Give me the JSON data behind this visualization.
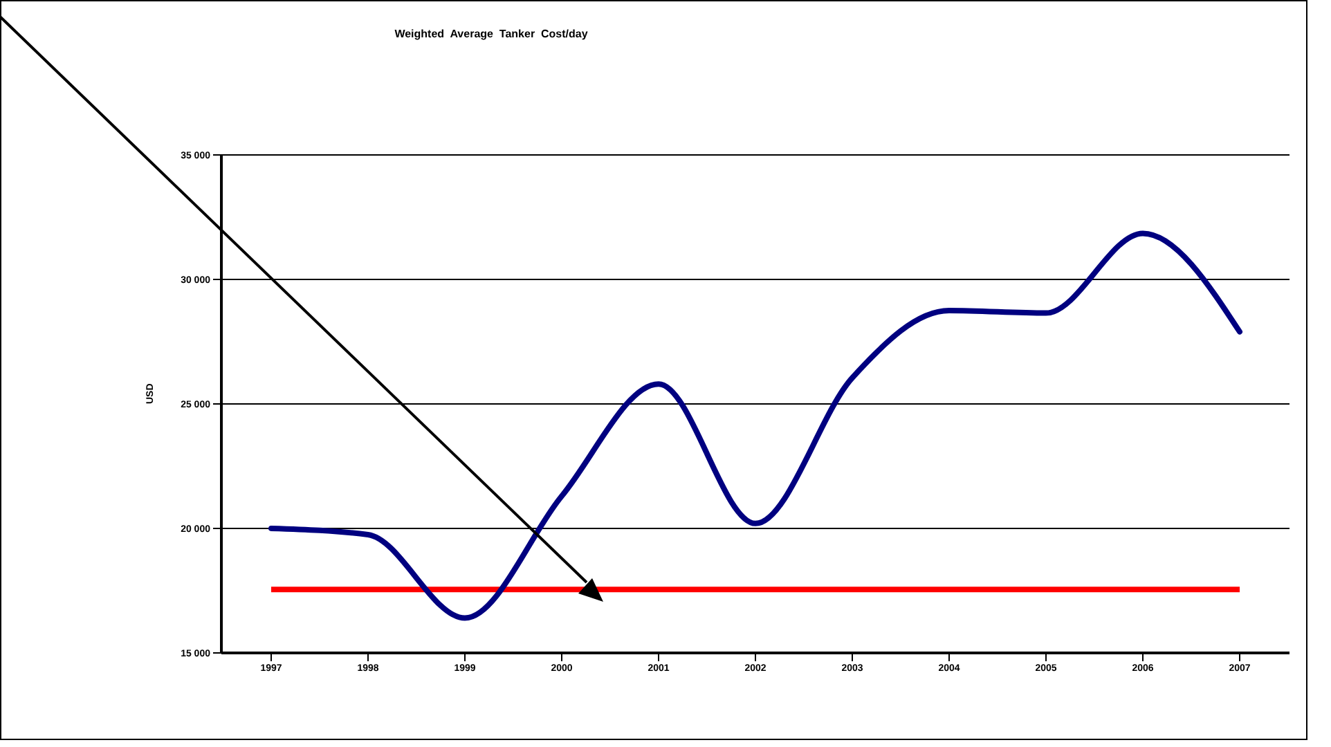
{
  "chart_data": {
    "type": "line",
    "title": "Weighted  Average  Tanker  Cost/day",
    "ylabel": "USD",
    "categories": [
      "1997",
      "1998",
      "1999",
      "2000",
      "2001",
      "2002",
      "2003",
      "2004",
      "2005",
      "2006",
      "2007"
    ],
    "series": [
      {
        "color": "#000080",
        "values": [
          20000,
          19750,
          16400,
          21300,
          25800,
          20200,
          26050,
          28750,
          28650,
          31850,
          27900
        ]
      }
    ],
    "ylim": [
      15000,
      35000
    ],
    "yticks": [
      {
        "value": 15000,
        "label": "15 000"
      },
      {
        "value": 20000,
        "label": "20 000"
      },
      {
        "value": 25000,
        "label": "25 000"
      },
      {
        "value": 30000,
        "label": "30 000"
      },
      {
        "value": 35000,
        "label": "35 000"
      }
    ],
    "ref_lines": [
      {
        "axis": "y",
        "value": 17550,
        "color": "#ff0000"
      }
    ],
    "grid": "y",
    "marker": "none",
    "line_style": "solid"
  }
}
